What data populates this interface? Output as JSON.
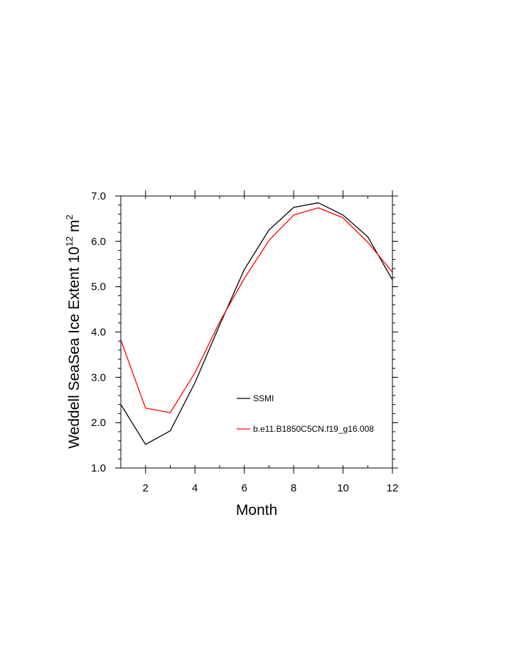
{
  "chart_data": {
    "type": "line",
    "xlabel": "Month",
    "ylabel_main": "Weddell SeaSea Ice Extent 10",
    "ylabel_sup": "12",
    "ylabel_unit": " m",
    "ylabel_unit_sup": "2",
    "xlim": [
      1,
      12
    ],
    "ylim": [
      1.0,
      7.0
    ],
    "xticks": [
      2,
      4,
      6,
      8,
      10,
      12
    ],
    "xtick_labels": [
      "2",
      "4",
      "6",
      "8",
      "10",
      "12"
    ],
    "yticks": [
      1.0,
      2.0,
      3.0,
      4.0,
      5.0,
      6.0,
      7.0
    ],
    "ytick_labels": [
      "1.0",
      "2.0",
      "3.0",
      "4.0",
      "5.0",
      "6.0",
      "7.0"
    ],
    "grid": false,
    "legend_position": "lower-center inside plot",
    "x": [
      1,
      2,
      3,
      4,
      5,
      6,
      7,
      8,
      9,
      10,
      11,
      12
    ],
    "series": [
      {
        "name": "SSMI",
        "color": "#000000",
        "values": [
          2.4,
          1.52,
          1.82,
          2.88,
          4.15,
          5.38,
          6.25,
          6.75,
          6.85,
          6.58,
          6.1,
          5.15
        ]
      },
      {
        "name": "b.e11.B1850C5CN.f19_g16.008",
        "color": "#ff0000",
        "values": [
          3.82,
          2.32,
          2.22,
          3.1,
          4.22,
          5.18,
          6.02,
          6.58,
          6.74,
          6.52,
          5.98,
          5.32
        ]
      }
    ]
  }
}
